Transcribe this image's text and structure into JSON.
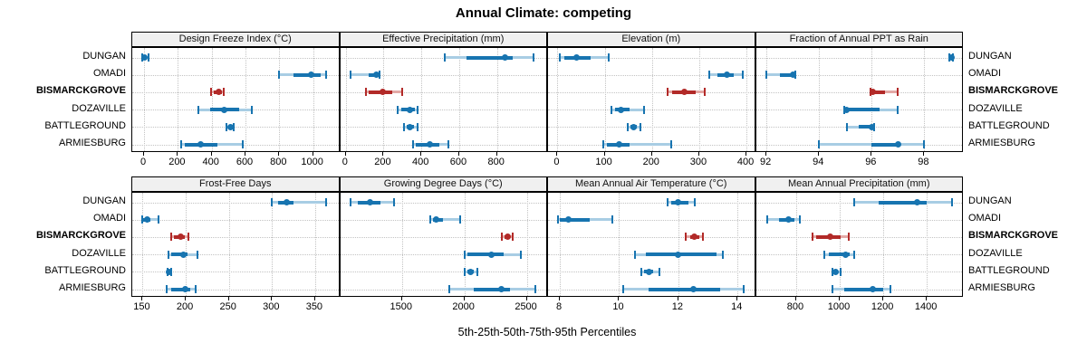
{
  "title": "Annual Climate: competing",
  "caption": "5th-25th-50th-75th-95th Percentiles",
  "sites": [
    "DUNGAN",
    "OMADI",
    "BISMARCKGROVE",
    "DOZAVILLE",
    "BATTLEGROUND",
    "ARMIESBURG"
  ],
  "highlight_site": "BISMARCKGROVE",
  "colors": {
    "main": "#1774b0",
    "main_light": "#a8cde4",
    "highlight": "#b22a28",
    "highlight_light": "#e3a9a6",
    "strip_bg": "#f0f0f0",
    "grid": "#c3c3c3",
    "border": "#000000",
    "background": "#ffffff"
  },
  "percentile_labels": [
    "5th",
    "25th",
    "50th",
    "75th",
    "95th"
  ],
  "chart_data": [
    {
      "type": "dotplot",
      "title": "Design Freeze Index (°C)",
      "domain": [
        -70,
        1160
      ],
      "ticks": [
        0,
        200,
        400,
        600,
        800,
        1000
      ],
      "series": [
        {
          "site": "DUNGAN",
          "p": [
            -10,
            0,
            5,
            12,
            25
          ]
        },
        {
          "site": "OMADI",
          "p": [
            800,
            885,
            990,
            1045,
            1075
          ]
        },
        {
          "site": "BISMARCKGROVE",
          "p": [
            395,
            415,
            440,
            460,
            472
          ]
        },
        {
          "site": "DOZAVILLE",
          "p": [
            320,
            390,
            475,
            560,
            640
          ]
        },
        {
          "site": "BATTLEGROUND",
          "p": [
            490,
            500,
            510,
            520,
            532
          ]
        },
        {
          "site": "ARMIESBURG",
          "p": [
            220,
            240,
            335,
            435,
            585
          ]
        }
      ]
    },
    {
      "type": "dotplot",
      "title": "Effective Precipitation (mm)",
      "domain": [
        -30,
        1070
      ],
      "ticks": [
        0,
        200,
        400,
        600,
        800
      ],
      "series": [
        {
          "site": "DUNGAN",
          "p": [
            525,
            640,
            840,
            885,
            995
          ]
        },
        {
          "site": "OMADI",
          "p": [
            25,
            120,
            160,
            172,
            180
          ]
        },
        {
          "site": "BISMARCKGROVE",
          "p": [
            108,
            122,
            197,
            248,
            300
          ]
        },
        {
          "site": "DOZAVILLE",
          "p": [
            275,
            295,
            338,
            365,
            380
          ]
        },
        {
          "site": "BATTLEGROUND",
          "p": [
            306,
            322,
            338,
            362,
            380
          ]
        },
        {
          "site": "ARMIESBURG",
          "p": [
            354,
            372,
            443,
            495,
            545
          ]
        }
      ]
    },
    {
      "type": "dotplot",
      "title": "Elevation (m)",
      "domain": [
        -20,
        420
      ],
      "ticks": [
        0,
        100,
        200,
        300,
        400
      ],
      "series": [
        {
          "site": "DUNGAN",
          "p": [
            5,
            15,
            40,
            70,
            108
          ]
        },
        {
          "site": "OMADI",
          "p": [
            322,
            338,
            359,
            374,
            393
          ]
        },
        {
          "site": "BISMARCKGROVE",
          "p": [
            233,
            243,
            268,
            293,
            311
          ]
        },
        {
          "site": "DOZAVILLE",
          "p": [
            115,
            121,
            135,
            153,
            183
          ]
        },
        {
          "site": "BATTLEGROUND",
          "p": [
            148,
            154,
            161,
            168,
            176
          ]
        },
        {
          "site": "ARMIESBURG",
          "p": [
            96,
            105,
            130,
            152,
            241
          ]
        }
      ]
    },
    {
      "type": "dotplot",
      "title": "Fraction of Annual PPT as Rain",
      "domain": [
        91.6,
        99.5
      ],
      "ticks": [
        92,
        94,
        96,
        98
      ],
      "series": [
        {
          "site": "DUNGAN",
          "p": [
            98.95,
            99.0,
            99.02,
            99.05,
            99.1
          ]
        },
        {
          "site": "OMADI",
          "p": [
            92.0,
            92.5,
            93.0,
            93.05,
            93.1
          ]
        },
        {
          "site": "BISMARCKGROVE",
          "p": [
            95.95,
            96.0,
            96.05,
            96.5,
            97.0
          ]
        },
        {
          "site": "DOZAVILLE",
          "p": [
            94.95,
            95.0,
            95.05,
            96.3,
            97.0
          ]
        },
        {
          "site": "BATTLEGROUND",
          "p": [
            95.05,
            95.5,
            96.0,
            96.05,
            96.1
          ]
        },
        {
          "site": "ARMIESBURG",
          "p": [
            94.0,
            96.0,
            97.0,
            97.1,
            98.0
          ]
        }
      ]
    },
    {
      "type": "dotplot",
      "title": "Frost-Free Days",
      "domain": [
        138,
        379
      ],
      "ticks": [
        150,
        200,
        250,
        300,
        350
      ],
      "series": [
        {
          "site": "DUNGAN",
          "p": [
            300,
            307,
            317,
            325,
            363
          ]
        },
        {
          "site": "OMADI",
          "p": [
            150,
            151,
            155,
            159,
            168
          ]
        },
        {
          "site": "BISMARCKGROVE",
          "p": [
            183,
            186,
            194,
            199,
            203
          ]
        },
        {
          "site": "DOZAVILLE",
          "p": [
            180,
            183,
            197,
            202,
            214
          ]
        },
        {
          "site": "BATTLEGROUND",
          "p": [
            179,
            180,
            181,
            182,
            183.5
          ]
        },
        {
          "site": "ARMIESBURG",
          "p": [
            178,
            183,
            199,
            205,
            211
          ]
        }
      ]
    },
    {
      "type": "dotplot",
      "title": "Growing Degree Days (°C)",
      "domain": [
        1005,
        2670
      ],
      "ticks": [
        1500,
        2000,
        2500
      ],
      "series": [
        {
          "site": "DUNGAN",
          "p": [
            1085,
            1150,
            1245,
            1330,
            1435
          ]
        },
        {
          "site": "OMADI",
          "p": [
            1730,
            1745,
            1775,
            1830,
            1965
          ]
        },
        {
          "site": "BISMARCKGROVE",
          "p": [
            2300,
            2320,
            2348,
            2368,
            2385
          ]
        },
        {
          "site": "DOZAVILLE",
          "p": [
            2005,
            2025,
            2220,
            2315,
            2455
          ]
        },
        {
          "site": "BATTLEGROUND",
          "p": [
            2005,
            2025,
            2050,
            2075,
            2105
          ]
        },
        {
          "site": "ARMIESBURG",
          "p": [
            1880,
            2075,
            2295,
            2365,
            2565
          ]
        }
      ]
    },
    {
      "type": "dotplot",
      "title": "Mean Annual Air Temperature (°C)",
      "domain": [
        7.6,
        14.62
      ],
      "ticks": [
        8,
        10,
        12,
        14
      ],
      "series": [
        {
          "site": "DUNGAN",
          "p": [
            11.65,
            11.75,
            12.0,
            12.35,
            12.55
          ]
        },
        {
          "site": "OMADI",
          "p": [
            7.93,
            8.0,
            8.3,
            9.0,
            9.77
          ]
        },
        {
          "site": "BISMARCKGROVE",
          "p": [
            12.25,
            12.4,
            12.55,
            12.7,
            12.82
          ]
        },
        {
          "site": "DOZAVILLE",
          "p": [
            10.55,
            10.9,
            12.0,
            13.3,
            13.5
          ]
        },
        {
          "site": "BATTLEGROUND",
          "p": [
            10.75,
            10.85,
            11.0,
            11.15,
            11.35
          ]
        },
        {
          "site": "ARMIESBURG",
          "p": [
            10.15,
            11.0,
            12.5,
            13.4,
            14.2
          ]
        }
      ]
    },
    {
      "type": "dotplot",
      "title": "Mean Annual Precipitation (mm)",
      "domain": [
        615,
        1570
      ],
      "ticks": [
        800,
        1000,
        1200,
        1400
      ],
      "series": [
        {
          "site": "DUNGAN",
          "p": [
            1065,
            1180,
            1355,
            1400,
            1515
          ]
        },
        {
          "site": "OMADI",
          "p": [
            665,
            720,
            765,
            790,
            817
          ]
        },
        {
          "site": "BISMARCKGROVE",
          "p": [
            875,
            890,
            955,
            1005,
            1040
          ]
        },
        {
          "site": "DOZAVILLE",
          "p": [
            930,
            950,
            1025,
            1047,
            1067
          ]
        },
        {
          "site": "BATTLEGROUND",
          "p": [
            967,
            975,
            982,
            990,
            1002
          ]
        },
        {
          "site": "ARMIESBURG",
          "p": [
            965,
            1020,
            1150,
            1200,
            1232
          ]
        }
      ]
    }
  ]
}
